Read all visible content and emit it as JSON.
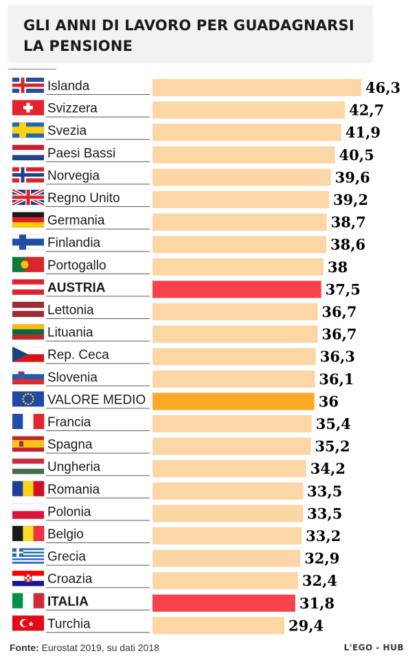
{
  "header": {
    "title_line1": "GLI ANNI DI LAVORO PER GUADAGNARSI",
    "title_line2": "LA PENSIONE"
  },
  "footer": {
    "source_label": "Fonte:",
    "source_text": " Eurostat 2019, su dati 2018",
    "logo": "L'EGO - HUB"
  },
  "colors": {
    "bar_default": "#fcd6a4",
    "bar_highlight": "#f7414b",
    "bar_average": "#fbaa25",
    "value_text": "#000000"
  },
  "chart_data": {
    "type": "bar",
    "orientation": "horizontal",
    "title": "GLI ANNI DI LAVORO PER GUADAGNARSI LA PENSIONE",
    "xlim": [
      0,
      46.3
    ],
    "grid": false,
    "categories": [
      "Islanda",
      "Svizzera",
      "Svezia",
      "Paesi Bassi",
      "Norvegia",
      "Regno Unito",
      "Germania",
      "Finlandia",
      "Portogallo",
      "AUSTRIA",
      "Lettonia",
      "Lituania",
      "Rep. Ceca",
      "Slovenia",
      "VALORE MEDIO",
      "Francia",
      "Spagna",
      "Ungheria",
      "Romania",
      "Polonia",
      "Belgio",
      "Grecia",
      "Croazia",
      "ITALIA",
      "Turchia"
    ],
    "values": [
      46.3,
      42.7,
      41.9,
      40.5,
      39.6,
      39.2,
      38.7,
      38.6,
      38,
      37.5,
      36.7,
      36.7,
      36.3,
      36.1,
      36,
      35.4,
      35.2,
      34.2,
      33.5,
      33.5,
      33.2,
      32.9,
      32.4,
      31.8,
      29.4
    ],
    "value_labels": [
      "46,3",
      "42,7",
      "41,9",
      "40,5",
      "39,6",
      "39,2",
      "38,7",
      "38,6",
      "38",
      "37,5",
      "36,7",
      "36,7",
      "36,3",
      "36,1",
      "36",
      "35,4",
      "35,2",
      "34,2",
      "33,5",
      "33,5",
      "33,2",
      "32,9",
      "32,4",
      "31,8",
      "29,4"
    ],
    "highlight": [
      "AUSTRIA",
      "ITALIA"
    ],
    "average": "VALORE MEDIO",
    "flags": [
      "iceland-flag-icon",
      "switzerland-flag-icon",
      "sweden-flag-icon",
      "netherlands-flag-icon",
      "norway-flag-icon",
      "uk-flag-icon",
      "germany-flag-icon",
      "finland-flag-icon",
      "portugal-flag-icon",
      "austria-flag-icon",
      "latvia-flag-icon",
      "lithuania-flag-icon",
      "czech-flag-icon",
      "slovenia-flag-icon",
      "eu-flag-icon",
      "france-flag-icon",
      "spain-flag-icon",
      "hungary-flag-icon",
      "romania-flag-icon",
      "poland-flag-icon",
      "belgium-flag-icon",
      "greece-flag-icon",
      "croatia-flag-icon",
      "italy-flag-icon",
      "turkey-flag-icon"
    ]
  }
}
